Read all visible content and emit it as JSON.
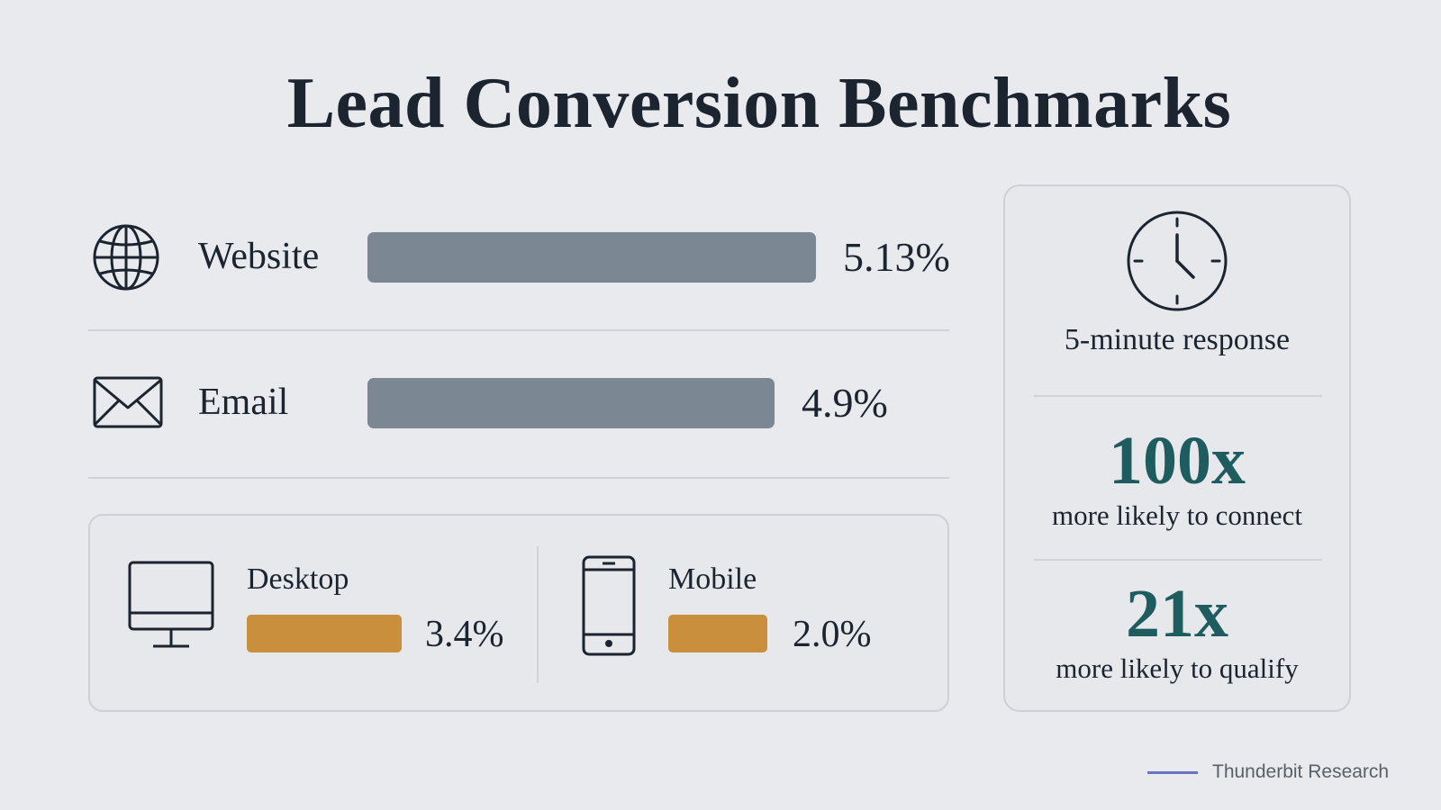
{
  "title": "Lead Conversion Benchmarks",
  "channels": [
    {
      "label": "Website",
      "value_label": "5.13%",
      "icon": "globe-icon"
    },
    {
      "label": "Email",
      "value_label": "4.9%",
      "icon": "envelope-icon"
    }
  ],
  "devices": [
    {
      "label": "Desktop",
      "value_label": "3.4%",
      "icon": "desktop-monitor-icon"
    },
    {
      "label": "Mobile",
      "value_label": "2.0%",
      "icon": "mobile-phone-icon"
    }
  ],
  "response": {
    "headline": "5-minute response",
    "icon": "clock-icon",
    "stats": [
      {
        "number": "100x",
        "caption": "more likely to connect"
      },
      {
        "number": "21x",
        "caption": "more likely to qualify"
      }
    ]
  },
  "source": "Thunderbit Research",
  "colors": {
    "background": "#e8eaed",
    "channel_bar": "#7b8894",
    "device_bar": "#c98f3c",
    "accent_number": "#1f5c5f",
    "source_line": "#6b73c4"
  },
  "chart_data": [
    {
      "type": "bar",
      "orientation": "horizontal",
      "categories": [
        "Website",
        "Email"
      ],
      "values": [
        5.13,
        4.9
      ],
      "unit": "%"
    },
    {
      "type": "bar",
      "orientation": "horizontal",
      "categories": [
        "Desktop",
        "Mobile"
      ],
      "values": [
        3.4,
        2.0
      ],
      "unit": "%"
    }
  ]
}
